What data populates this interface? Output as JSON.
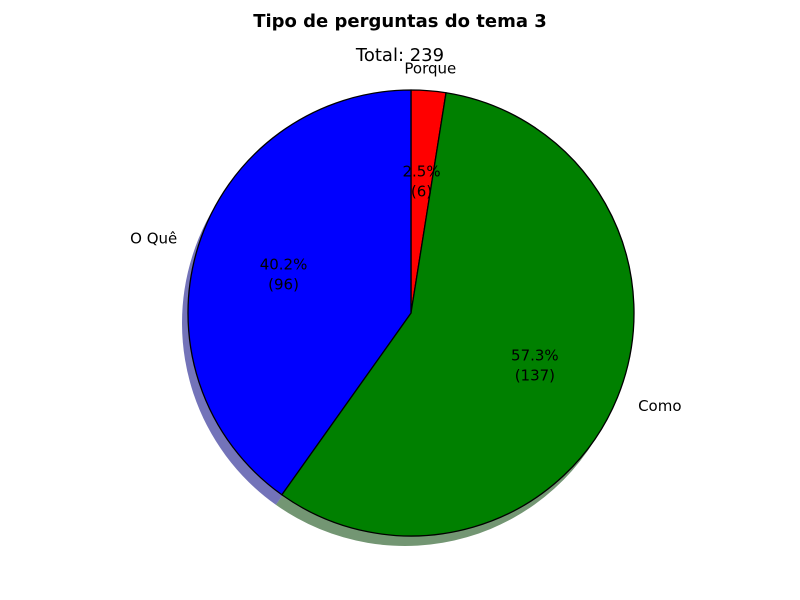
{
  "chart_data": {
    "type": "pie",
    "title": "Tipo de perguntas do tema 3",
    "subtitle": "Total: 239",
    "total": 239,
    "slices": [
      {
        "label": "Porque",
        "value": 6,
        "percent": "2.5%",
        "count_text": "(6)",
        "color": "#ff0000"
      },
      {
        "label": "Como",
        "value": 137,
        "percent": "57.3%",
        "count_text": "(137)",
        "color": "#008000"
      },
      {
        "label": "O Quê",
        "value": 96,
        "percent": "40.2%",
        "count_text": "(96)",
        "color": "#0000ff"
      }
    ],
    "shadow": true,
    "legend": "none"
  }
}
